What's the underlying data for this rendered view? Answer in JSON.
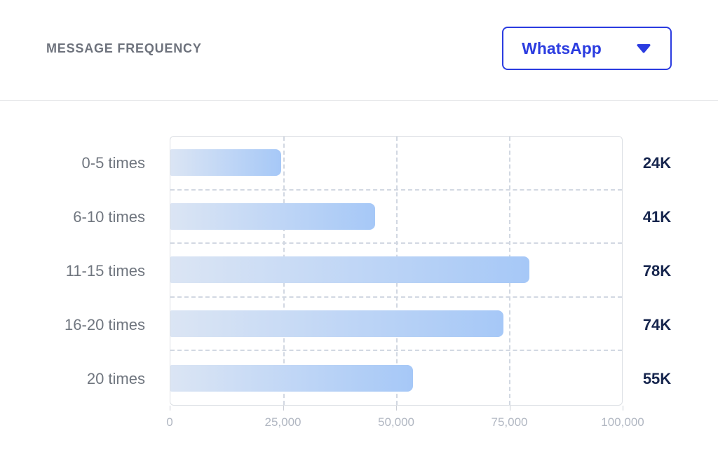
{
  "header": {
    "title": "MESSAGE FREQUENCY",
    "dropdown": {
      "label": "WhatsApp",
      "icon": "caret-down-icon"
    }
  },
  "chart_data": {
    "type": "bar",
    "orientation": "horizontal",
    "title": "MESSAGE FREQUENCY",
    "categories": [
      "0-5 times",
      "6-10 times",
      "11-15 times",
      "16-20 times",
      "20 times"
    ],
    "values": [
      24000,
      41000,
      78000,
      74000,
      55000
    ],
    "value_labels": [
      "24K",
      "41K",
      "78K",
      "74K",
      "55K"
    ],
    "bar_render_pct": [
      24.5,
      45.3,
      79.5,
      73.8,
      53.8
    ],
    "x_ticks": [
      0,
      25000,
      50000,
      75000,
      100000
    ],
    "x_tick_labels": [
      "0",
      "25,000",
      "50,000",
      "75,000",
      "100,000"
    ],
    "xlim": [
      0,
      100000
    ],
    "grid_line_values": [
      25000,
      50000,
      75000
    ],
    "grid_style": "dashed",
    "legend": "none",
    "colors": {
      "bar_gradient_start": "#dbe5f4",
      "bar_gradient_end": "#a6c8f7",
      "grid_line": "#d2d8e2",
      "plot_border": "#dcdfe4",
      "axis_label": "#b1b7c2",
      "category_label": "#70767f",
      "value_label": "#17264e",
      "accent_blue": "#2b3ce0",
      "title_gray": "#6d727c"
    }
  }
}
